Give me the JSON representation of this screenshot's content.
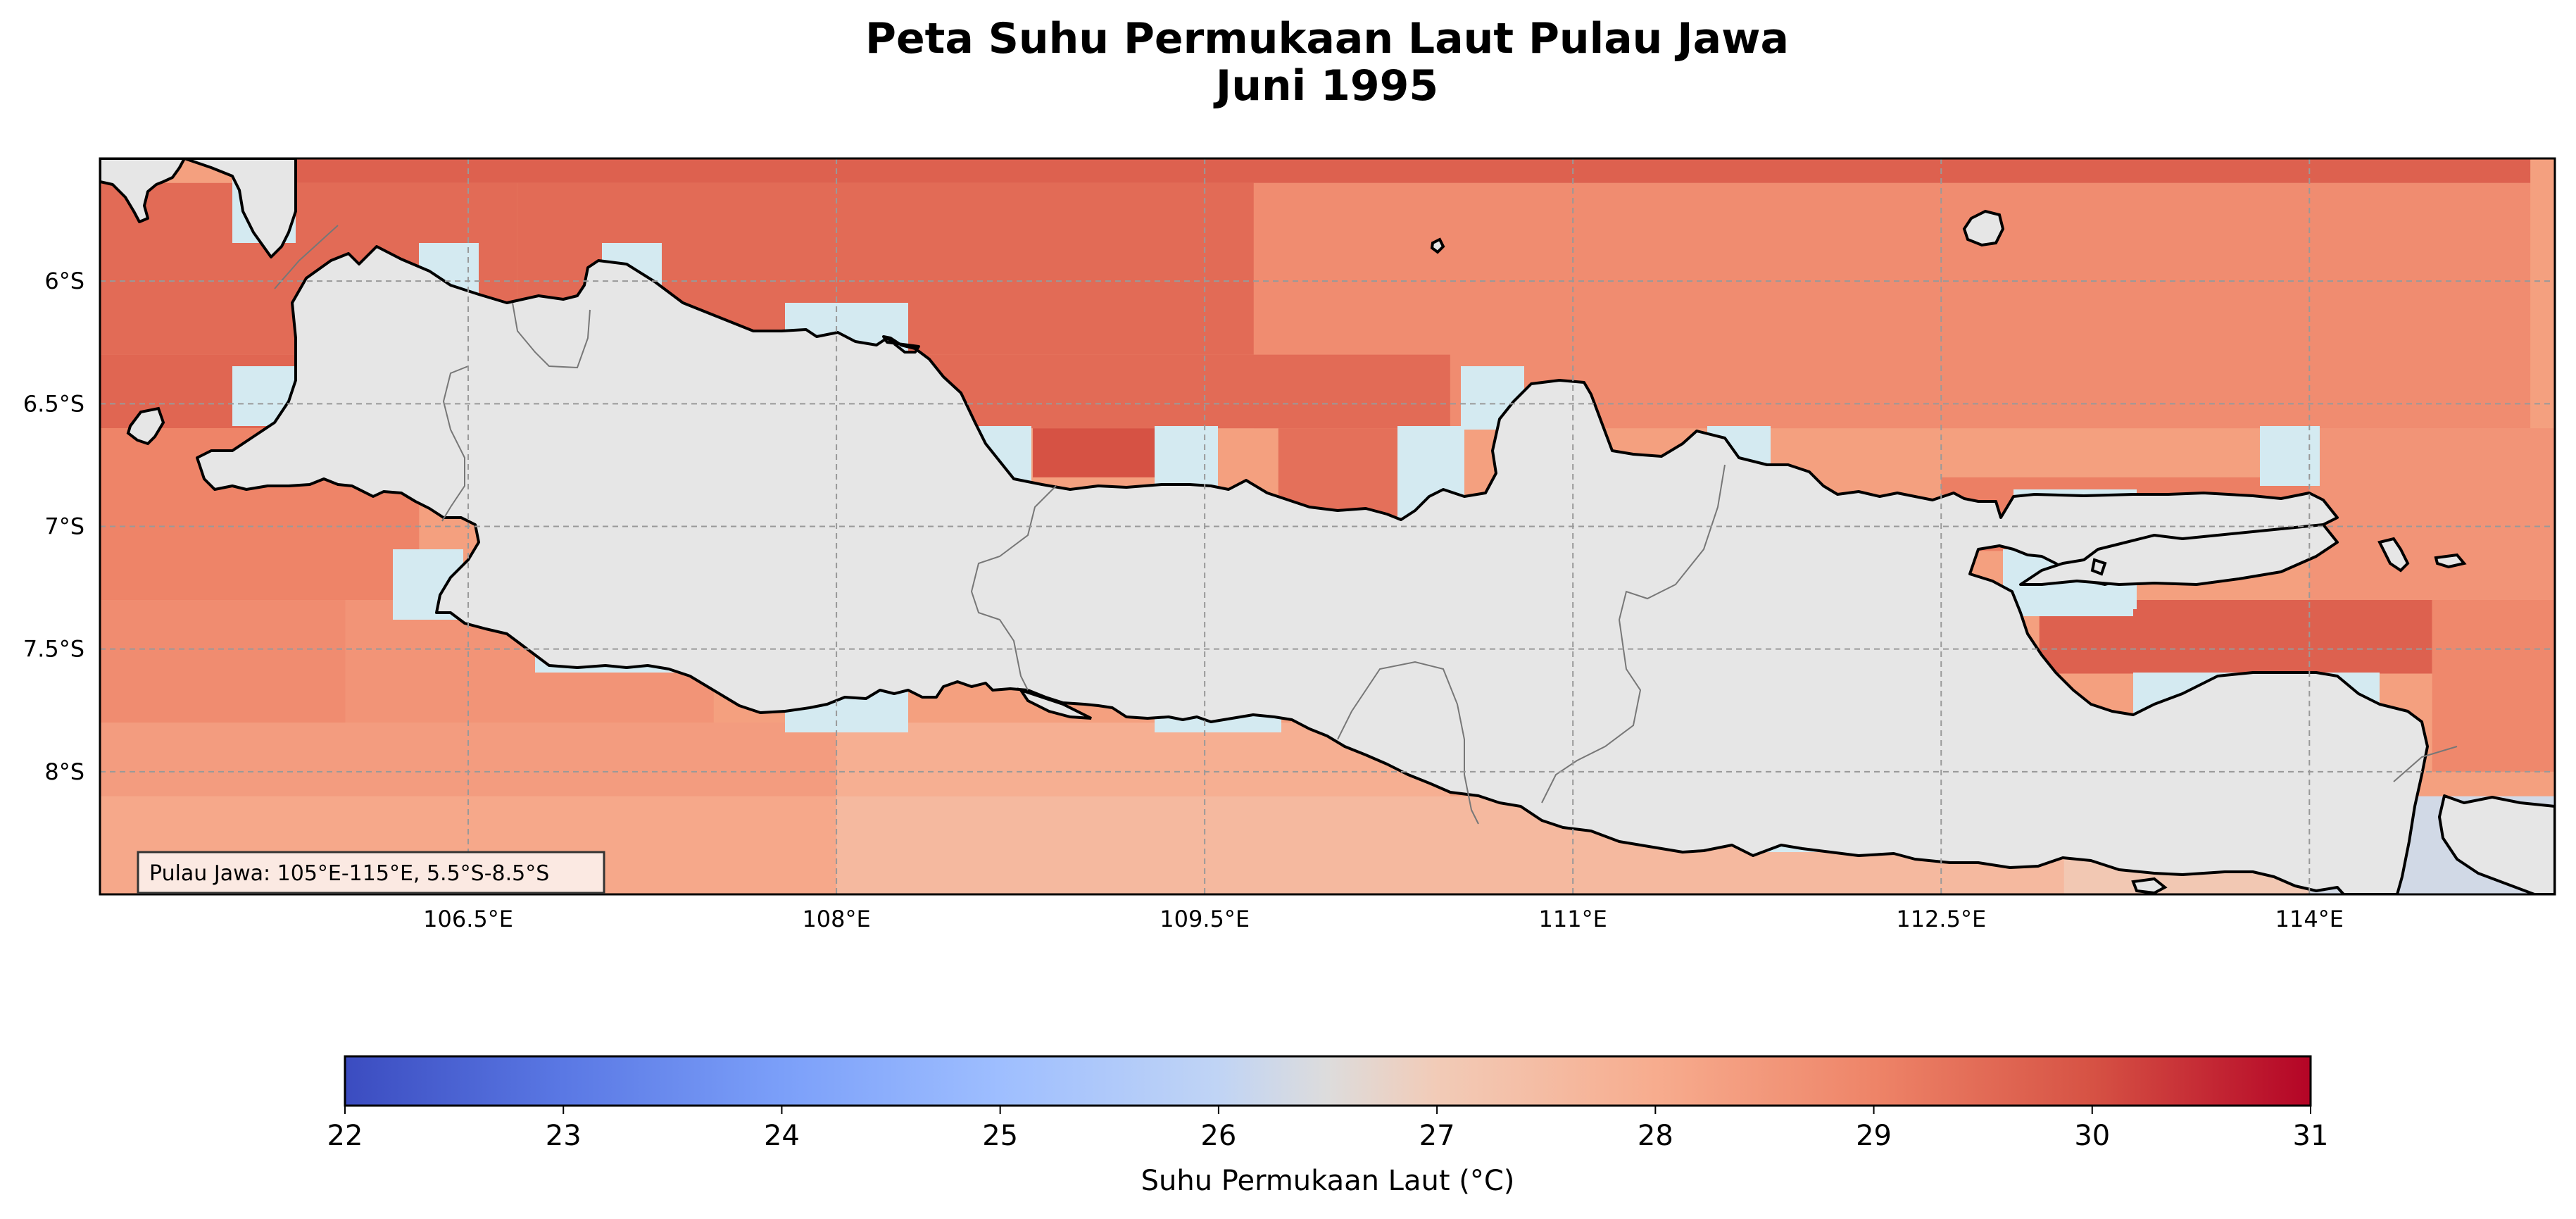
{
  "title": {
    "line1": "Peta Suhu Permukaan Laut Pulau Jawa",
    "line2": "Juni 1995"
  },
  "map": {
    "lon_range": [
      105.0,
      115.0
    ],
    "lat_range": [
      -8.5,
      -5.5
    ],
    "lon_ticks": [
      {
        "value": 106.5,
        "label": "106.5°E"
      },
      {
        "value": 108.0,
        "label": "108°E"
      },
      {
        "value": 109.5,
        "label": "109.5°E"
      },
      {
        "value": 111.0,
        "label": "111°E"
      },
      {
        "value": 112.5,
        "label": "112.5°E"
      },
      {
        "value": 114.0,
        "label": "114°E"
      }
    ],
    "lat_ticks": [
      {
        "value": -6.0,
        "label": "6°S"
      },
      {
        "value": -6.5,
        "label": "6.5°S"
      },
      {
        "value": -7.0,
        "label": "7°S"
      },
      {
        "value": -7.5,
        "label": "7.5°S"
      },
      {
        "value": -8.0,
        "label": "8°S"
      }
    ],
    "grid": true,
    "land_color": "#e6e6e6",
    "missing_ocean_color": "#d4eaf1",
    "annotation": "Pulau Jawa: 105°E-115°E, 5.5°S-8.5°S"
  },
  "chart_data": {
    "type": "heatmap",
    "variable": "Suhu Permukaan Laut (°C)",
    "region_cells": [
      {
        "lon": [
          105.8,
          114.9
        ],
        "lat": [
          -5.6,
          -5.5
        ],
        "value": 29.7
      },
      {
        "lon": [
          105.0,
          106.7
        ],
        "lat": [
          -6.3,
          -5.6
        ],
        "value": 29.5
      },
      {
        "lon": [
          106.7,
          109.7
        ],
        "lat": [
          -6.3,
          -5.6
        ],
        "value": 29.5
      },
      {
        "lon": [
          109.7,
          114.9
        ],
        "lat": [
          -6.6,
          -5.6
        ],
        "value": 28.8
      },
      {
        "lon": [
          108.3,
          110.5
        ],
        "lat": [
          -6.6,
          -6.3
        ],
        "value": 29.5
      },
      {
        "lon": [
          105.0,
          105.9
        ],
        "lat": [
          -6.6,
          -6.3
        ],
        "value": 29.6
      },
      {
        "lon": [
          105.0,
          106.3
        ],
        "lat": [
          -7.3,
          -6.6
        ],
        "value": 29.0
      },
      {
        "lon": [
          105.0,
          106.0
        ],
        "lat": [
          -7.8,
          -7.3
        ],
        "value": 28.8
      },
      {
        "lon": [
          106.0,
          107.5
        ],
        "lat": [
          -7.8,
          -7.3
        ],
        "value": 28.6
      },
      {
        "lon": [
          105.0,
          108.0
        ],
        "lat": [
          -8.1,
          -7.8
        ],
        "value": 28.4
      },
      {
        "lon": [
          108.0,
          110.5
        ],
        "lat": [
          -8.1,
          -7.8
        ],
        "value": 27.9
      },
      {
        "lon": [
          105.0,
          108.0
        ],
        "lat": [
          -8.5,
          -8.1
        ],
        "value": 28.1
      },
      {
        "lon": [
          108.0,
          113.0
        ],
        "lat": [
          -8.5,
          -8.1
        ],
        "value": 27.6
      },
      {
        "lon": [
          113.0,
          114.0
        ],
        "lat": [
          -8.5,
          -8.3
        ],
        "value": 27.1
      },
      {
        "lon": [
          114.0,
          115.0
        ],
        "lat": [
          -8.5,
          -8.1
        ],
        "value": 26.3
      },
      {
        "lon": [
          112.9,
          114.5
        ],
        "lat": [
          -7.6,
          -7.3
        ],
        "value": 29.7
      },
      {
        "lon": [
          114.5,
          115.0
        ],
        "lat": [
          -8.0,
          -7.3
        ],
        "value": 28.9
      },
      {
        "lon": [
          114.0,
          115.0
        ],
        "lat": [
          -7.3,
          -6.6
        ],
        "value": 28.6
      },
      {
        "lon": [
          112.5,
          114.0
        ],
        "lat": [
          -7.1,
          -6.8
        ],
        "value": 29.1
      },
      {
        "lon": [
          108.8,
          109.3
        ],
        "lat": [
          -6.8,
          -6.6
        ],
        "value": 30.0
      },
      {
        "lon": [
          109.8,
          110.4
        ],
        "lat": [
          -7.1,
          -6.6
        ],
        "value": 29.4
      }
    ],
    "colorbar": {
      "cmap": "coolwarm",
      "min": 22,
      "max": 31,
      "ticks": [
        22,
        23,
        24,
        25,
        26,
        27,
        28,
        29,
        30,
        31
      ],
      "label": "Suhu Permukaan Laut (°C)"
    }
  }
}
